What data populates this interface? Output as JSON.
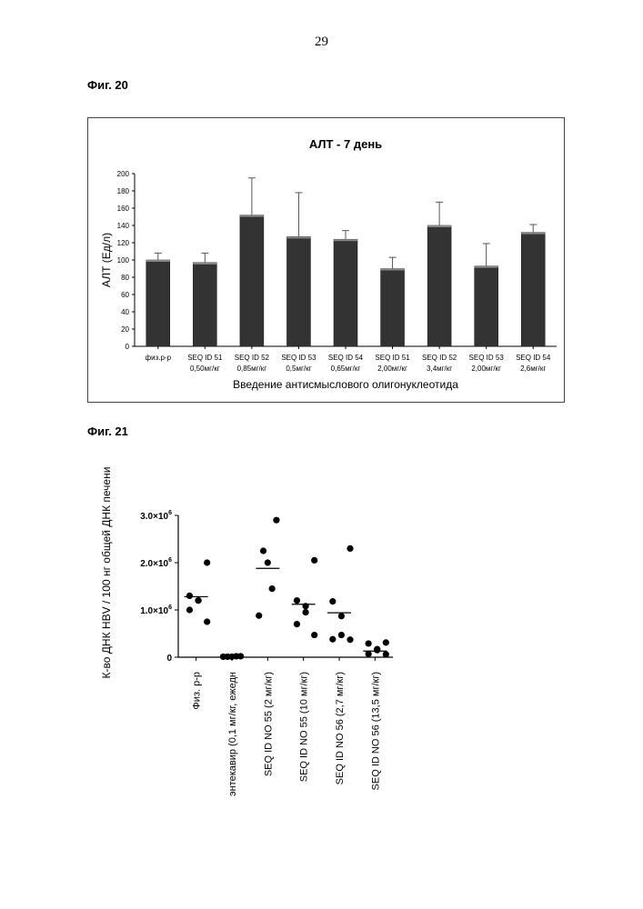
{
  "page_number": "29",
  "figures": [
    {
      "caption": "Фиг. 20"
    },
    {
      "caption": "Фиг. 21"
    }
  ],
  "chart_data": [
    {
      "type": "bar",
      "title": "АЛТ - 7 день",
      "ylabel": "АЛТ (Ед/л)",
      "xlabel": "Введение антисмыслового олигонуклеотида",
      "ylim": [
        0,
        200
      ],
      "yticks": [
        "0",
        "20",
        "40",
        "60",
        "80",
        "100",
        "120",
        "140",
        "160",
        "180",
        "200"
      ],
      "grid": false,
      "bar_color": "#333333",
      "categories": [
        [
          "физ.р-р",
          ""
        ],
        [
          "SEQ ID 51",
          "0,50мг/кг"
        ],
        [
          "SEQ ID 52",
          "0,85мг/кг"
        ],
        [
          "SEQ ID 53",
          "0,5мг/кг"
        ],
        [
          "SEQ ID 54",
          "0,65мг/кг"
        ],
        [
          "SEQ ID 51",
          "2,00мг/кг"
        ],
        [
          "SEQ ID 52",
          "3,4мг/кг"
        ],
        [
          "SEQ ID 53",
          "2,00мг/кг"
        ],
        [
          "SEQ ID 54",
          "2,6мг/кг"
        ]
      ],
      "values": [
        100,
        97,
        152,
        127,
        124,
        90,
        140,
        93,
        132
      ],
      "errors": [
        8,
        11,
        43,
        51,
        10,
        13,
        27,
        26,
        9
      ]
    },
    {
      "type": "scatter",
      "ylabel": "К-во ДНК HBV / 100 нг общей ДНК печени",
      "ylim": [
        0,
        3000000
      ],
      "yticks": [
        {
          "value": 0,
          "base": "0",
          "exp": ""
        },
        {
          "value": 1000000,
          "base": "1.0×10",
          "exp": "6"
        },
        {
          "value": 2000000,
          "base": "2.0×10",
          "exp": "6"
        },
        {
          "value": 3000000,
          "base": "3.0×10",
          "exp": "6"
        }
      ],
      "grid": false,
      "categories": [
        "Физ. р-р",
        "энтекавир (0,1 мг/кг, ежедн",
        "SEQ ID NO 55 (2 мг/кг)",
        "SEQ ID NO 55 (10 мг/кг)",
        "SEQ ID NO 56 (2,7  мг/кг)",
        "SEQ ID NO 56 (13,5 мг/кг)"
      ],
      "series": [
        {
          "points": [
            2000000,
            1300000,
            1200000,
            1200000,
            1000000,
            750000
          ],
          "median": 1280000
        },
        {
          "points": [
            20000,
            10000,
            10000,
            20000,
            10000
          ],
          "median": 10000
        },
        {
          "points": [
            2900000,
            2250000,
            2000000,
            1450000,
            880000
          ],
          "median": 1880000
        },
        {
          "points": [
            2050000,
            1200000,
            1080000,
            950000,
            700000,
            470000
          ],
          "median": 1120000
        },
        {
          "points": [
            2300000,
            1180000,
            870000,
            470000,
            380000,
            370000
          ],
          "median": 940000
        },
        {
          "points": [
            310000,
            290000,
            170000,
            150000,
            70000,
            60000
          ],
          "median": 130000
        }
      ]
    }
  ]
}
